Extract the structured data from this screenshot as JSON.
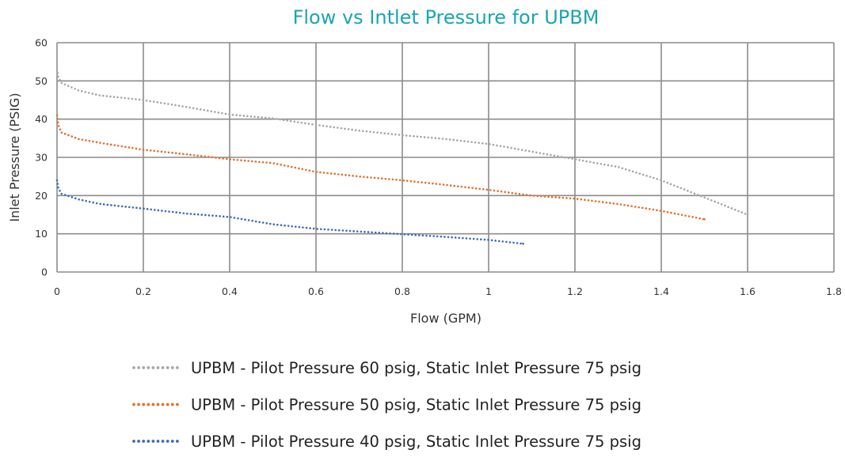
{
  "chart_data": {
    "type": "scatter",
    "title": "Flow vs Intlet Pressure for UPBM",
    "xlabel": "Flow (GPM)",
    "ylabel": "Inlet Pressure (PSIG)",
    "xlim": [
      0,
      1.8
    ],
    "ylim": [
      0,
      60
    ],
    "x_ticks": [
      "0",
      "0.2",
      "0.4",
      "0.6",
      "0.8",
      "1",
      "1.2",
      "1.4",
      "1.6",
      "1.8"
    ],
    "y_ticks": [
      "0",
      "10",
      "20",
      "30",
      "40",
      "50",
      "60"
    ],
    "grid": true,
    "legend_position": "bottom",
    "series": [
      {
        "name": "UPBM - Pilot Pressure 60 psig, Static Inlet Pressure 75 psig",
        "color": "#a6a6a6",
        "points": [
          [
            0,
            53
          ],
          [
            0.003,
            51
          ],
          [
            0.01,
            49.5
          ],
          [
            0.05,
            47.5
          ],
          [
            0.1,
            46.2
          ],
          [
            0.2,
            45
          ],
          [
            0.3,
            43.2
          ],
          [
            0.4,
            41.2
          ],
          [
            0.5,
            40.2
          ],
          [
            0.6,
            38.5
          ],
          [
            0.7,
            37
          ],
          [
            0.8,
            35.8
          ],
          [
            0.9,
            34.8
          ],
          [
            1.0,
            33.5
          ],
          [
            1.1,
            31.5
          ],
          [
            1.2,
            29.5
          ],
          [
            1.3,
            27.5
          ],
          [
            1.4,
            24
          ],
          [
            1.5,
            19.5
          ],
          [
            1.6,
            15
          ]
        ]
      },
      {
        "name": "UPBM - Pilot Pressure 50 psig, Static Inlet Pressure 75 psig",
        "color": "#e0712b",
        "points": [
          [
            0,
            41
          ],
          [
            0.003,
            38.5
          ],
          [
            0.01,
            36.5
          ],
          [
            0.05,
            34.8
          ],
          [
            0.1,
            33.8
          ],
          [
            0.2,
            32
          ],
          [
            0.3,
            30.8
          ],
          [
            0.4,
            29.5
          ],
          [
            0.5,
            28.5
          ],
          [
            0.6,
            26.2
          ],
          [
            0.7,
            25
          ],
          [
            0.8,
            24
          ],
          [
            0.9,
            22.8
          ],
          [
            1.0,
            21.5
          ],
          [
            1.1,
            20
          ],
          [
            1.2,
            19.2
          ],
          [
            1.3,
            17.8
          ],
          [
            1.4,
            16
          ],
          [
            1.5,
            13.8
          ]
        ]
      },
      {
        "name": "UPBM - Pilot Pressure 40 psig, Static Inlet Pressure 75 psig",
        "color": "#3a6bb8",
        "points": [
          [
            0,
            24
          ],
          [
            0.003,
            22
          ],
          [
            0.01,
            20.5
          ],
          [
            0.05,
            19
          ],
          [
            0.1,
            17.8
          ],
          [
            0.2,
            16.6
          ],
          [
            0.3,
            15.3
          ],
          [
            0.4,
            14.4
          ],
          [
            0.5,
            12.5
          ],
          [
            0.6,
            11.3
          ],
          [
            0.7,
            10.6
          ],
          [
            0.8,
            9.9
          ],
          [
            0.9,
            9.2
          ],
          [
            1.0,
            8.4
          ],
          [
            1.08,
            7.4
          ]
        ]
      }
    ]
  }
}
